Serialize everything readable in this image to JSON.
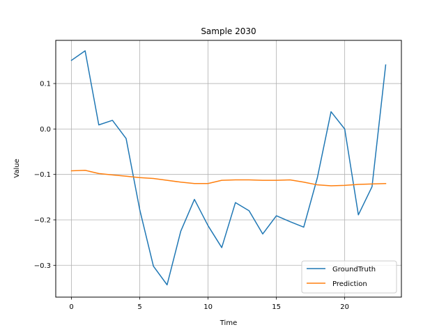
{
  "chart_data": {
    "type": "line",
    "title": "Sample 2030",
    "xlabel": "Time",
    "ylabel": "Value",
    "xlim": [
      -1.15,
      24.15
    ],
    "ylim": [
      -0.37,
      0.195
    ],
    "xticks": [
      0,
      5,
      10,
      15,
      20
    ],
    "xtick_labels": [
      "0",
      "5",
      "10",
      "15",
      "20"
    ],
    "yticks": [
      -0.3,
      -0.2,
      -0.1,
      0.0,
      0.1
    ],
    "ytick_labels": [
      "−0.3",
      "−0.2",
      "−0.1",
      "0.0",
      "0.1"
    ],
    "grid": true,
    "legend_position": "lower-right",
    "x": [
      0,
      1,
      2,
      3,
      4,
      5,
      6,
      7,
      8,
      9,
      10,
      11,
      12,
      13,
      14,
      15,
      16,
      17,
      18,
      19,
      20,
      21,
      22,
      23
    ],
    "series": [
      {
        "name": "GroundTruth",
        "color": "#1f77b4",
        "values": [
          0.151,
          0.172,
          0.009,
          0.019,
          -0.021,
          -0.178,
          -0.302,
          -0.343,
          -0.225,
          -0.155,
          -0.213,
          -0.261,
          -0.162,
          -0.18,
          -0.231,
          -0.191,
          -0.204,
          -0.216,
          -0.107,
          0.038,
          0.0,
          -0.189,
          -0.127,
          0.141
        ]
      },
      {
        "name": "Prediction",
        "color": "#ff7f0e",
        "values": [
          -0.092,
          -0.091,
          -0.098,
          -0.101,
          -0.104,
          -0.107,
          -0.109,
          -0.113,
          -0.117,
          -0.12,
          -0.12,
          -0.113,
          -0.112,
          -0.112,
          -0.113,
          -0.113,
          -0.112,
          -0.117,
          -0.123,
          -0.125,
          -0.124,
          -0.122,
          -0.121,
          -0.12
        ]
      }
    ]
  }
}
